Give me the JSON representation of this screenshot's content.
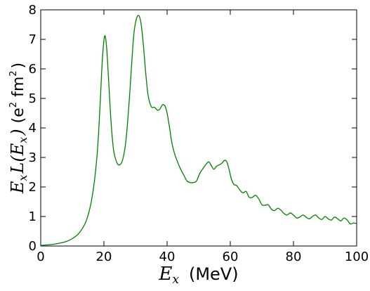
{
  "colors": {
    "series": "#008000",
    "axes": "#000000",
    "background": "#ffffff"
  },
  "chart_data": {
    "type": "line",
    "xlabel_var": "E",
    "xlabel_sub": "x",
    "xlabel_unit": "(MeV)",
    "ylabel_parts": {
      "a": "E",
      "a_sub": "x",
      "b": "L(E",
      "b_sub": "x",
      "close": ")",
      "unit_open": "(e",
      "unit_sup1": "2",
      "unit_mid": " fm",
      "unit_sup2": "2",
      "unit_close": ")"
    },
    "xlim": [
      0,
      100
    ],
    "ylim": [
      0,
      8
    ],
    "x_ticks": [
      0,
      20,
      40,
      60,
      80,
      100
    ],
    "y_ticks": [
      0,
      1,
      2,
      3,
      4,
      5,
      6,
      7,
      8
    ],
    "grid": false,
    "series": [
      {
        "x": [
          0,
          4,
          8,
          10,
          12,
          14,
          15,
          16,
          17,
          18,
          18.8,
          19.5,
          20.2,
          20.8,
          21.5,
          22.2,
          23,
          24,
          25,
          26,
          27,
          28,
          28.8,
          29.5,
          30.3,
          31.1,
          31.8,
          32.5,
          33.2,
          34,
          35,
          36,
          37,
          37.8,
          38.5,
          39.3,
          40,
          40.8,
          41.5,
          42.3,
          43.3,
          44.3,
          45.3,
          46.3,
          47.3,
          48.3,
          49.3,
          50.3,
          51.2,
          52.2,
          53.2,
          54,
          54.8,
          55.6,
          56.5,
          57.3,
          58.1,
          58.9,
          59.6,
          60.4,
          61.2,
          62,
          63,
          64,
          65,
          66,
          67,
          68,
          69,
          70,
          71,
          72,
          73,
          74,
          75,
          76,
          77,
          78,
          79,
          80,
          81,
          82,
          83,
          84,
          85,
          86,
          87,
          88,
          89,
          90,
          91,
          92,
          93,
          94,
          95,
          96,
          97,
          98,
          99,
          100
        ],
        "y": [
          0.02,
          0.06,
          0.15,
          0.25,
          0.42,
          0.75,
          1.05,
          1.5,
          2.2,
          3.3,
          4.8,
          6.3,
          7.1,
          6.8,
          5.6,
          4.3,
          3.3,
          2.85,
          2.75,
          2.95,
          3.6,
          4.9,
          6.2,
          7.2,
          7.7,
          7.8,
          7.5,
          6.8,
          5.9,
          5.1,
          4.72,
          4.7,
          4.6,
          4.65,
          4.78,
          4.75,
          4.5,
          4.0,
          3.5,
          3.15,
          2.85,
          2.6,
          2.4,
          2.2,
          2.15,
          2.15,
          2.2,
          2.45,
          2.6,
          2.75,
          2.85,
          2.72,
          2.6,
          2.7,
          2.75,
          2.8,
          2.9,
          2.85,
          2.6,
          2.25,
          2.08,
          2.05,
          1.9,
          1.8,
          1.85,
          1.65,
          1.65,
          1.72,
          1.6,
          1.4,
          1.38,
          1.4,
          1.25,
          1.2,
          1.28,
          1.22,
          1.1,
          1.05,
          1.12,
          1.05,
          0.95,
          0.98,
          1.05,
          0.98,
          0.92,
          1.0,
          1.05,
          0.95,
          0.9,
          1.0,
          0.92,
          0.88,
          0.98,
          0.92,
          0.85,
          0.95,
          0.88,
          0.75,
          0.78,
          0.76
        ]
      }
    ]
  }
}
